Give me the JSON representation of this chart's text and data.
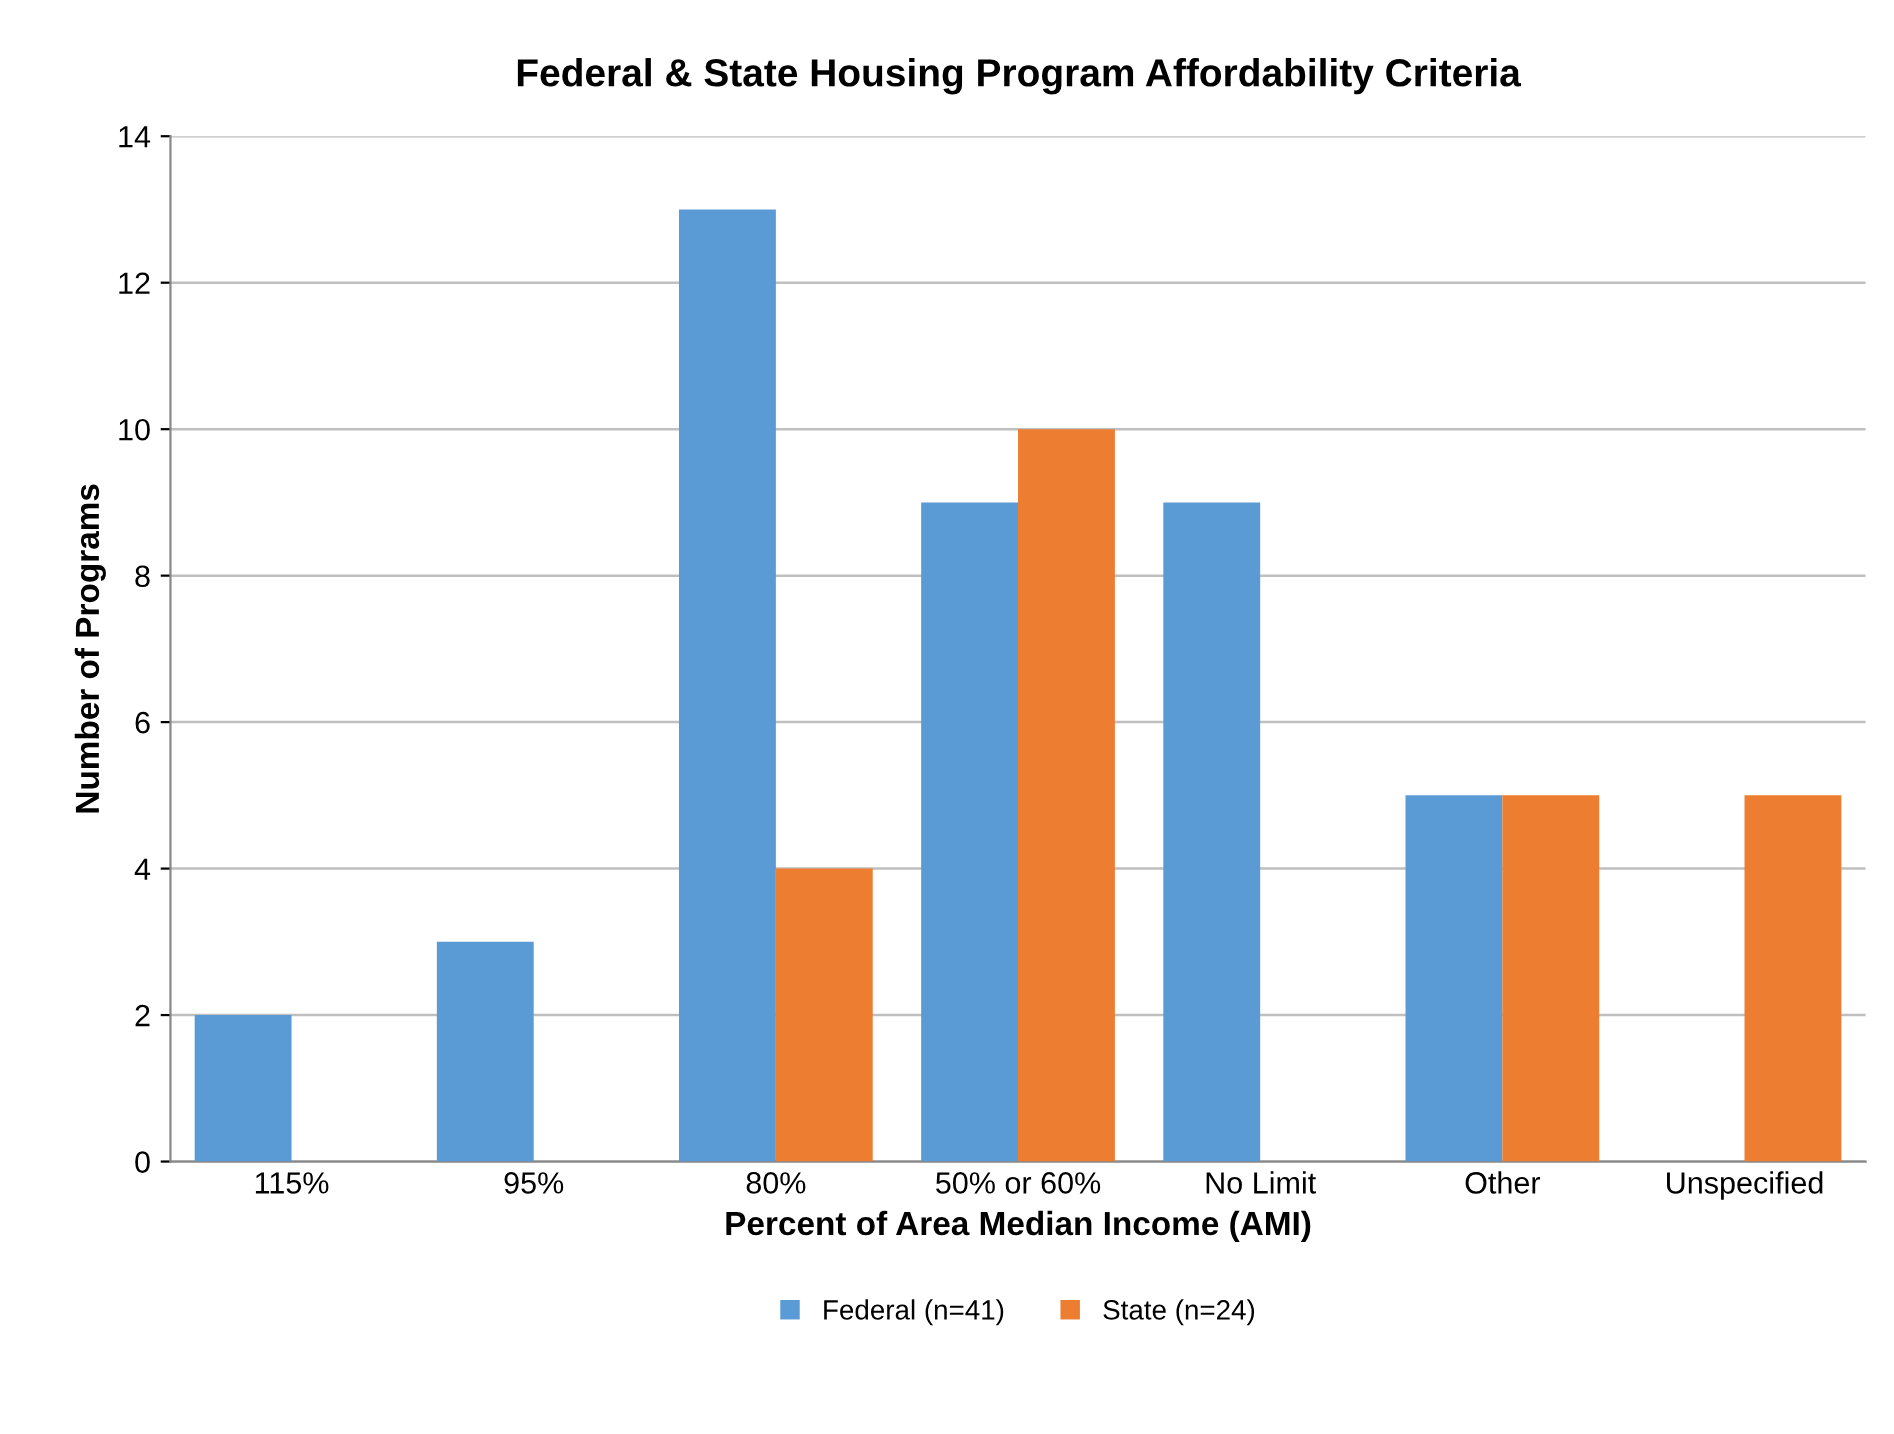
{
  "chart_data": {
    "type": "bar",
    "title": "Federal & State Housing Program Affordability Criteria",
    "xlabel": "Percent of Area Median Income (AMI)",
    "ylabel": "Number of Programs",
    "categories": [
      "115%",
      "95%",
      "80%",
      "50% or 60%",
      "No Limit",
      "Other",
      "Unspecified"
    ],
    "series": [
      {
        "name": "Federal (n=41)",
        "color": "#5b9bd5",
        "values": [
          2,
          3,
          13,
          9,
          9,
          5,
          0
        ]
      },
      {
        "name": "State (n=24)",
        "color": "#ed7d31",
        "values": [
          0,
          0,
          4,
          10,
          0,
          5,
          5
        ]
      }
    ],
    "ylim": [
      0,
      14
    ],
    "yticks": [
      0,
      2,
      4,
      6,
      8,
      10,
      12,
      14
    ],
    "grid": "y",
    "legend": "bottom"
  }
}
